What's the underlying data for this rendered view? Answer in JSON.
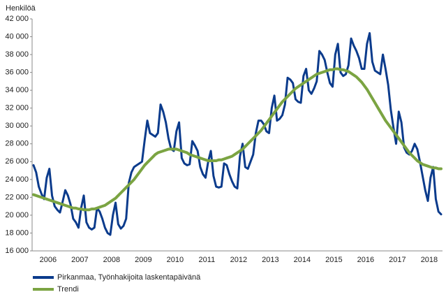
{
  "chart_data": {
    "type": "line",
    "y_axis_label": "Henkilöä",
    "categories": [
      null,
      null,
      null,
      null,
      null,
      null,
      "2006",
      null,
      null,
      null,
      null,
      null,
      null,
      null,
      null,
      null,
      null,
      null,
      "2007",
      null,
      null,
      null,
      null,
      null,
      null,
      null,
      null,
      null,
      null,
      null,
      "2008",
      null,
      null,
      null,
      null,
      null,
      null,
      null,
      null,
      null,
      null,
      null,
      "2009",
      null,
      null,
      null,
      null,
      null,
      null,
      null,
      null,
      null,
      null,
      null,
      "2010",
      null,
      null,
      null,
      null,
      null,
      null,
      null,
      null,
      null,
      null,
      null,
      "2011",
      null,
      null,
      null,
      null,
      null,
      null,
      null,
      null,
      null,
      null,
      null,
      "2012",
      null,
      null,
      null,
      null,
      null,
      null,
      null,
      null,
      null,
      null,
      null,
      "2013",
      null,
      null,
      null,
      null,
      null,
      null,
      null,
      null,
      null,
      null,
      null,
      "2014",
      null,
      null,
      null,
      null,
      null,
      null,
      null,
      null,
      null,
      null,
      null,
      "2015",
      null,
      null,
      null,
      null,
      null,
      null,
      null,
      null,
      null,
      null,
      null,
      "2016",
      null,
      null,
      null,
      null,
      null,
      null,
      null,
      null,
      null,
      null,
      null,
      "2017",
      null,
      null,
      null,
      null,
      null,
      null,
      null,
      null,
      null,
      null,
      null,
      "2018",
      null,
      null,
      null,
      null
    ],
    "series": [
      {
        "name": "Pirkanmaa, Työnhakijoita laskentapäivänä",
        "color": "#0b3b8c",
        "values": [
          25600,
          24800,
          23200,
          22400,
          21800,
          24200,
          25200,
          22200,
          21000,
          20600,
          20300,
          21500,
          22800,
          22200,
          21200,
          19600,
          19200,
          18600,
          20800,
          22200,
          19200,
          18600,
          18400,
          18600,
          20800,
          20400,
          19600,
          18600,
          18000,
          17800,
          20000,
          21400,
          19000,
          18500,
          18800,
          19600,
          23600,
          24800,
          25400,
          25600,
          25800,
          26000,
          28400,
          30600,
          29200,
          29000,
          28800,
          29200,
          32400,
          31600,
          30400,
          28600,
          27400,
          27200,
          29400,
          30400,
          26400,
          25800,
          25600,
          25700,
          28300,
          27800,
          27200,
          25400,
          24600,
          24200,
          26000,
          27200,
          24400,
          23200,
          23100,
          23200,
          25800,
          25600,
          24600,
          23800,
          23200,
          23000,
          26600,
          28000,
          25400,
          25200,
          26000,
          26800,
          29200,
          30600,
          30600,
          30200,
          29400,
          29200,
          32000,
          33400,
          30600,
          30800,
          31200,
          32400,
          35400,
          35200,
          34800,
          33000,
          32700,
          32600,
          35600,
          36400,
          34000,
          33600,
          34200,
          35000,
          38400,
          38000,
          37400,
          36000,
          34800,
          34400,
          38000,
          39200,
          36000,
          35600,
          35800,
          36800,
          39800,
          39000,
          38400,
          37600,
          36400,
          36400,
          39200,
          40400,
          37200,
          36200,
          36000,
          35800,
          38000,
          36400,
          34600,
          31800,
          29800,
          28000,
          31600,
          30400,
          27600,
          27000,
          26800,
          27200,
          28000,
          27400,
          26000,
          24400,
          22800,
          21600,
          24200,
          25400,
          21800,
          20400,
          20100
        ]
      },
      {
        "name": "Trendi",
        "color": "#7ba442",
        "values": [
          22300,
          22200,
          22100,
          22000,
          21900,
          21800,
          21700,
          21600,
          21500,
          21400,
          21300,
          21200,
          21100,
          21000,
          20900,
          20800,
          20800,
          20700,
          20700,
          20600,
          20600,
          20600,
          20700,
          20700,
          20800,
          20900,
          21000,
          21100,
          21300,
          21500,
          21700,
          21900,
          22200,
          22500,
          22800,
          23100,
          23400,
          23700,
          24000,
          24400,
          24800,
          25200,
          25600,
          25900,
          26200,
          26500,
          26800,
          27000,
          27100,
          27200,
          27300,
          27400,
          27400,
          27400,
          27400,
          27300,
          27200,
          27100,
          27000,
          26800,
          26700,
          26600,
          26500,
          26400,
          26300,
          26200,
          26100,
          26100,
          26100,
          26100,
          26200,
          26200,
          26300,
          26400,
          26500,
          26600,
          26800,
          27000,
          27200,
          27400,
          27700,
          28000,
          28300,
          28600,
          28900,
          29200,
          29500,
          29900,
          30300,
          30700,
          31100,
          31500,
          31900,
          32300,
          32700,
          33000,
          33300,
          33600,
          33900,
          34200,
          34400,
          34600,
          34800,
          35000,
          35200,
          35400,
          35600,
          35800,
          35900,
          36000,
          36100,
          36200,
          36300,
          36300,
          36400,
          36400,
          36300,
          36300,
          36200,
          36100,
          35900,
          35700,
          35500,
          35200,
          34900,
          34500,
          34100,
          33600,
          33100,
          32600,
          32100,
          31600,
          31100,
          30600,
          30200,
          29800,
          29400,
          29000,
          28600,
          28200,
          27800,
          27400,
          27000,
          26700,
          26400,
          26100,
          25900,
          25700,
          25600,
          25500,
          25400,
          25300,
          25300,
          25200,
          25200
        ]
      }
    ],
    "ylim": [
      16000,
      42000
    ],
    "yticks": [
      {
        "value": 16000,
        "label": "16 000"
      },
      {
        "value": 18000,
        "label": "18 000"
      },
      {
        "value": 20000,
        "label": "20 000"
      },
      {
        "value": 22000,
        "label": "22 000"
      },
      {
        "value": 24000,
        "label": "24 000"
      },
      {
        "value": 26000,
        "label": "26 000"
      },
      {
        "value": 28000,
        "label": "28 000"
      },
      {
        "value": 30000,
        "label": "30 000"
      },
      {
        "value": 32000,
        "label": "32 000"
      },
      {
        "value": 34000,
        "label": "34 000"
      },
      {
        "value": 36000,
        "label": "36 000"
      },
      {
        "value": 38000,
        "label": "38 000"
      },
      {
        "value": 40000,
        "label": "40 000"
      },
      {
        "value": 42000,
        "label": "42 000"
      }
    ],
    "grid": false,
    "legend": "bottom"
  }
}
